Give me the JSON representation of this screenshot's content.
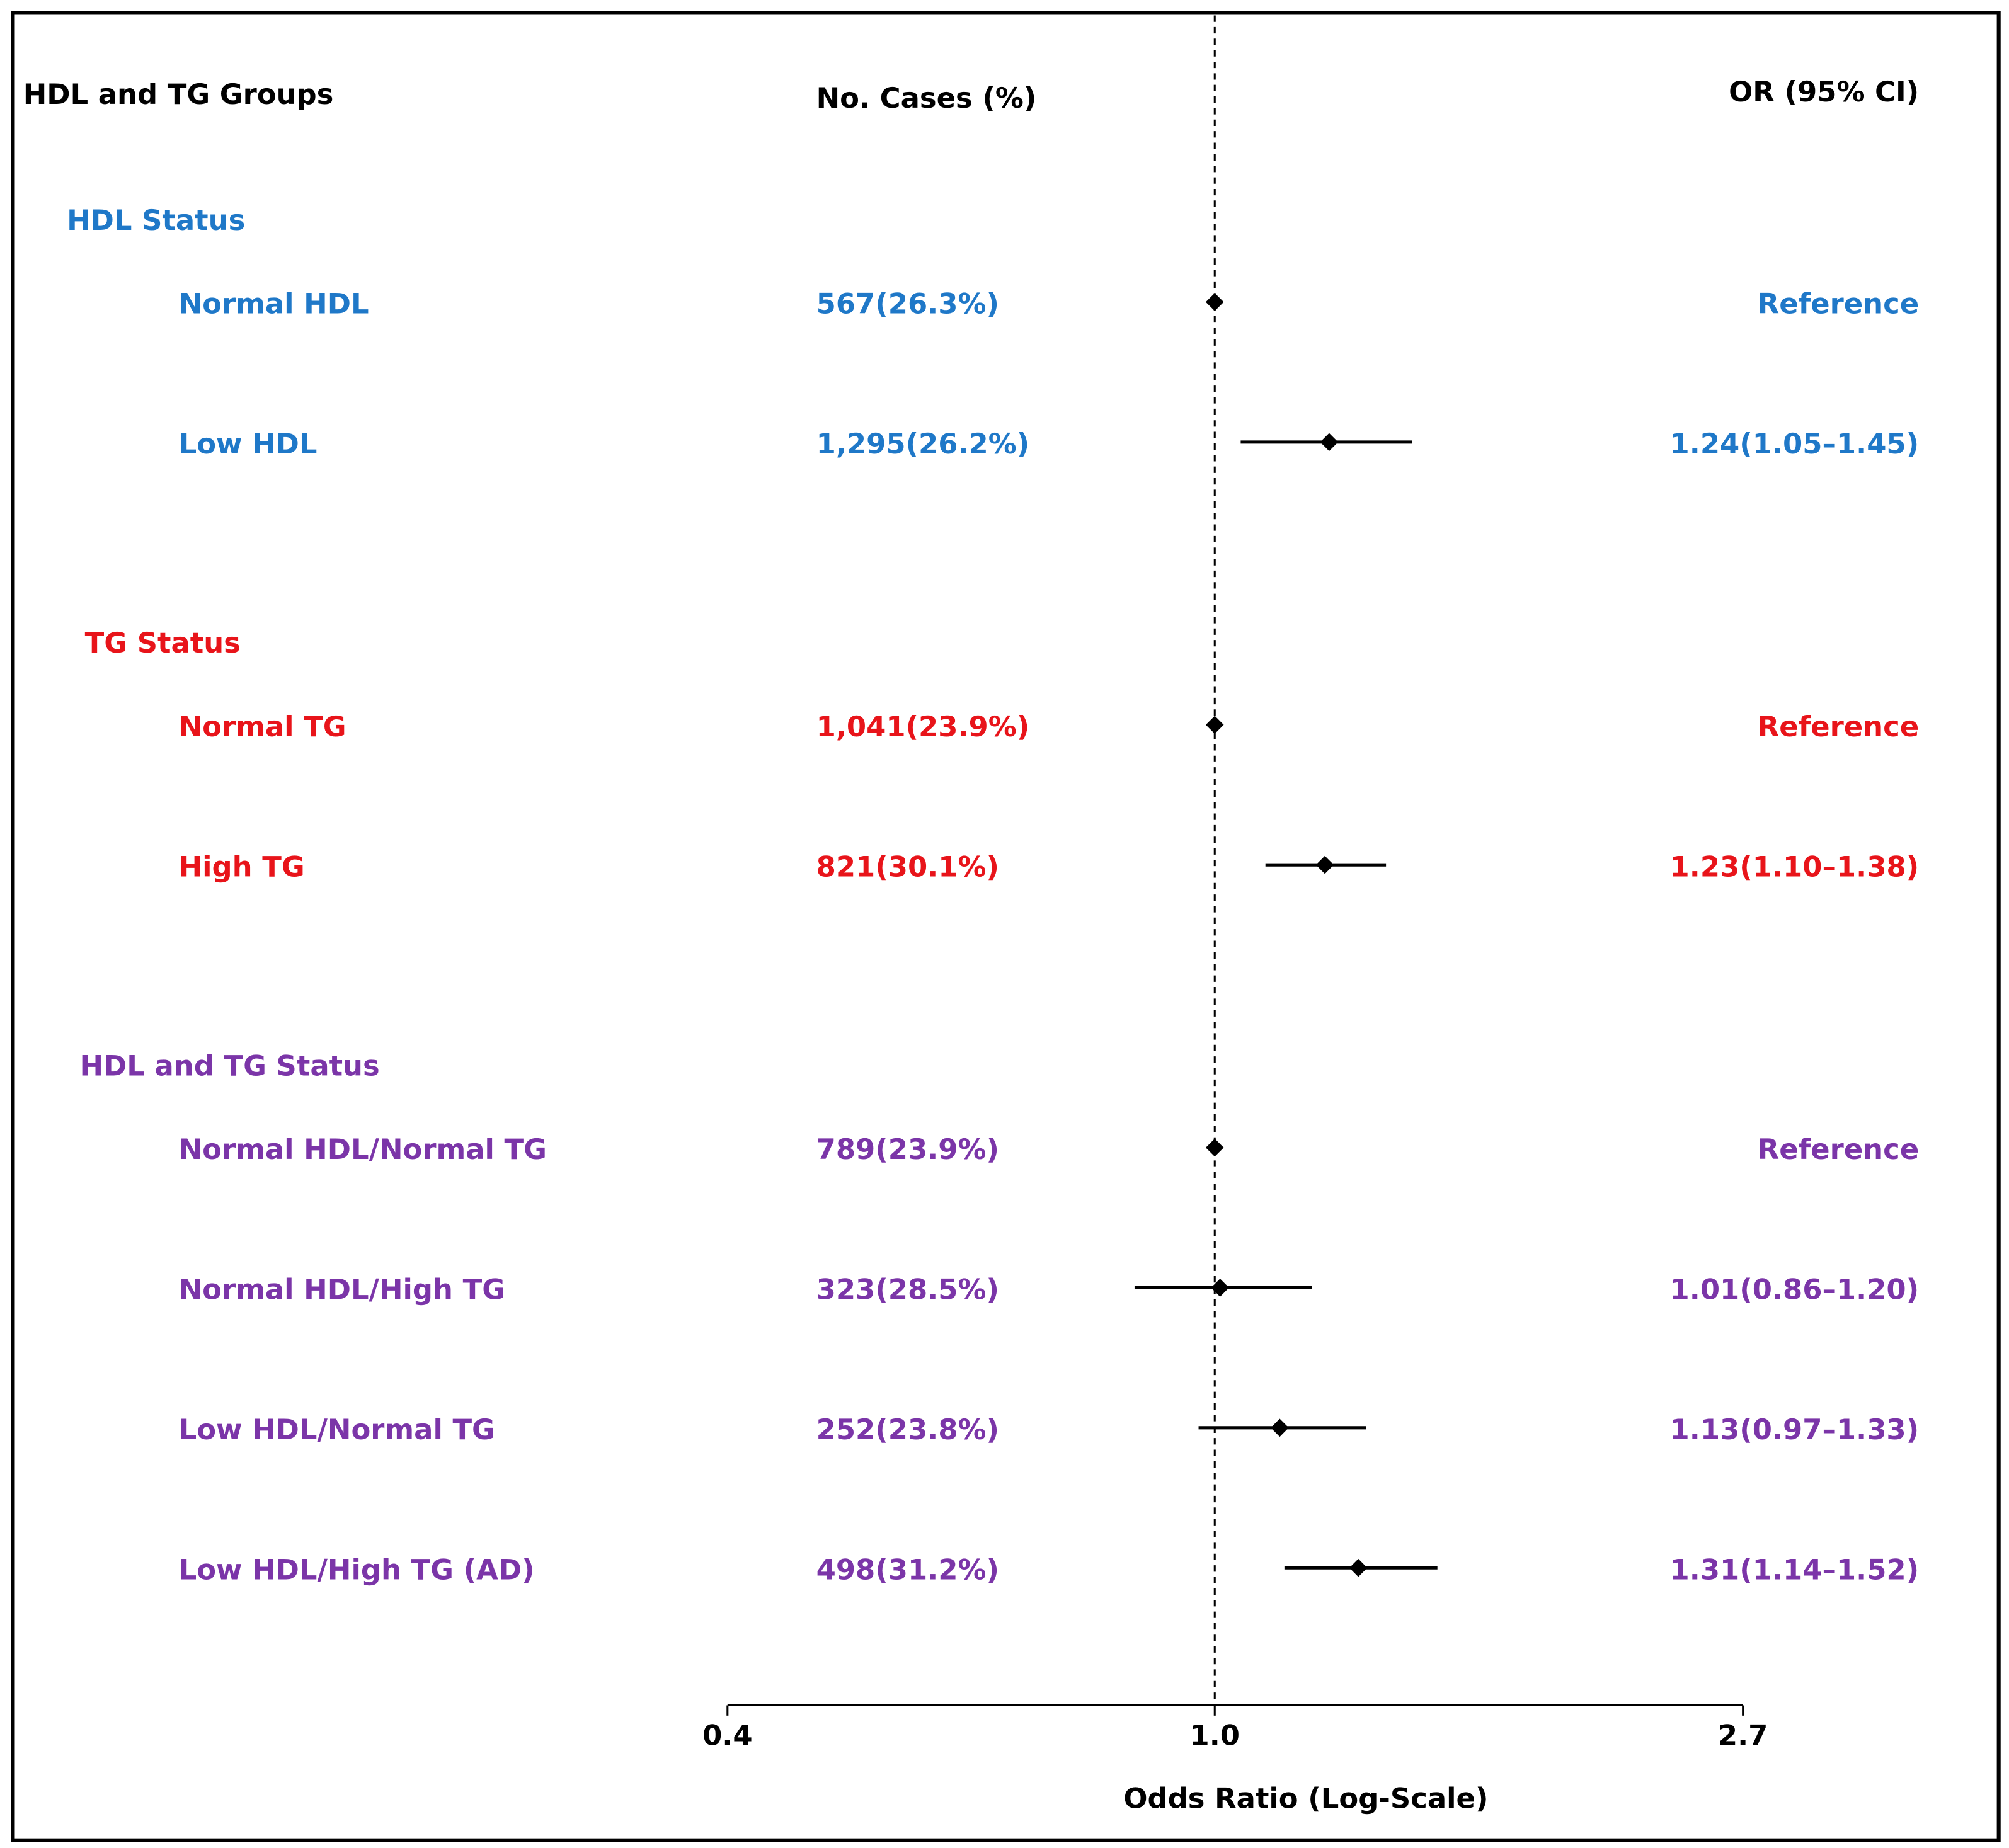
{
  "chart_data": {
    "type": "forest",
    "columns": {
      "group": "HDL and TG Groups",
      "cases": "No. Cases (%)",
      "estimate": "OR (95% CI)"
    },
    "x_label": "Odds Ratio (Log-Scale)",
    "log_scale": true,
    "xlim": [
      0.4,
      2.7
    ],
    "xticks": [
      0.4,
      {
        "value": 1,
        "label": "1.0"
      },
      2.7
    ],
    "reference_line": 1,
    "marker_color": "#000000",
    "groups": [
      {
        "name": "HDL Status",
        "color": "#1f78c8",
        "rows": [
          {
            "label": "Normal HDL",
            "cases": "567(26.3%)",
            "value": 1,
            "value_label": "Reference"
          },
          {
            "label": "Low HDL",
            "cases": "1,295(26.2%)",
            "value": 1.24,
            "lower": 1.05,
            "upper": 1.45,
            "value_label": "1.24(1.05–1.45)"
          }
        ]
      },
      {
        "name": "TG Status",
        "color": "#e8141a",
        "rows": [
          {
            "label": "Normal TG",
            "cases": "1,041(23.9%)",
            "value": 1,
            "value_label": "Reference"
          },
          {
            "label": "High TG",
            "cases": "821(30.1%)",
            "value": 1.23,
            "lower": 1.1,
            "upper": 1.38,
            "value_label": "1.23(1.10–1.38)"
          }
        ]
      },
      {
        "name": "HDL and TG Status",
        "color": "#7b35a8",
        "rows": [
          {
            "label": "Normal HDL/Normal TG",
            "cases": "789(23.9%)",
            "value": 1,
            "value_label": "Reference"
          },
          {
            "label": "Normal HDL/High TG",
            "cases": "323(28.5%)",
            "value": 1.01,
            "lower": 0.86,
            "upper": 1.2,
            "value_label": "1.01(0.86–1.20)"
          },
          {
            "label": "Low HDL/Normal TG",
            "cases": "252(23.8%)",
            "value": 1.13,
            "lower": 0.97,
            "upper": 1.33,
            "value_label": "1.13(0.97–1.33)"
          },
          {
            "label": "Low HDL/High TG (AD)",
            "cases": "498(31.2%)",
            "value": 1.31,
            "lower": 1.14,
            "upper": 1.52,
            "value_label": "1.31(1.14–1.52)"
          }
        ]
      }
    ]
  }
}
